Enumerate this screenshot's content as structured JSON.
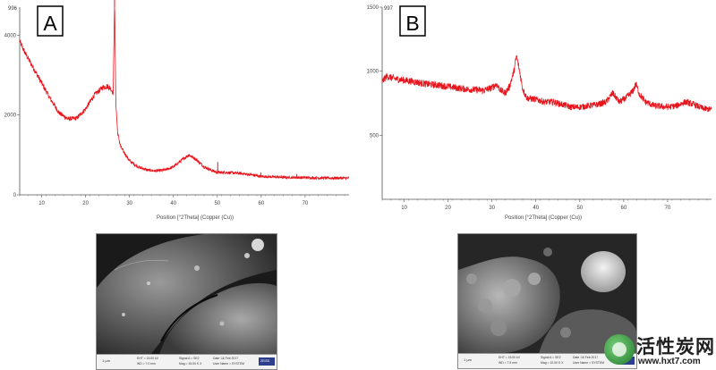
{
  "chart_data": [
    {
      "type": "line",
      "panel_label": "A",
      "corner_label": "996",
      "xlabel": "Position [°2Theta] (Copper (Cu))",
      "xlim": [
        5,
        80
      ],
      "ylim": [
        0,
        4700
      ],
      "xticks": [
        10,
        20,
        30,
        40,
        50,
        60,
        70
      ],
      "yticks": [
        0,
        2000,
        4000
      ],
      "grid": false,
      "line_color": "#e8141c",
      "noise_amplitude": 70,
      "series": [
        {
          "x": [
            5,
            6,
            8,
            10,
            12,
            14,
            16,
            18,
            20,
            22,
            24,
            25,
            25.8,
            26.3,
            26.6,
            26.9,
            27.3,
            28,
            30,
            32,
            34,
            36,
            38,
            40,
            42,
            43.5,
            45,
            47,
            49,
            50,
            52,
            55,
            58,
            60,
            65,
            70,
            75,
            80
          ],
          "y": [
            3850,
            3600,
            3200,
            2800,
            2400,
            2050,
            1900,
            1920,
            2150,
            2500,
            2700,
            2720,
            2650,
            2550,
            4900,
            2300,
            1550,
            1200,
            850,
            700,
            620,
            600,
            620,
            700,
            880,
            1000,
            900,
            700,
            600,
            560,
            560,
            540,
            500,
            460,
            440,
            430,
            420,
            420
          ]
        }
      ],
      "peaks": [
        {
          "x": 26.6,
          "y": 4900
        },
        {
          "x": 50.1,
          "y": 820
        },
        {
          "x": 59.9,
          "y": 560
        },
        {
          "x": 68.1,
          "y": 520
        }
      ]
    },
    {
      "type": "line",
      "panel_label": "B",
      "corner_label": "997",
      "xlabel": "Position [°2Theta] (Copper (Cu))",
      "xlim": [
        5,
        80
      ],
      "ylim": [
        0,
        1500
      ],
      "xticks": [
        10,
        20,
        30,
        40,
        50,
        60,
        70
      ],
      "yticks": [
        500,
        1000,
        1500
      ],
      "grid": false,
      "line_color": "#e8141c",
      "noise_amplitude": 28,
      "series": [
        {
          "x": [
            5,
            6,
            8,
            10,
            12,
            15,
            18,
            20,
            22,
            24,
            26,
            28,
            30,
            31,
            32,
            33,
            34,
            35,
            35.6,
            36.3,
            37,
            38,
            40,
            42,
            44,
            46,
            48,
            50,
            52,
            54,
            56,
            57.5,
            59,
            60.5,
            62,
            62.8,
            63.6,
            65,
            67,
            70,
            72,
            74,
            76,
            78,
            80
          ],
          "y": [
            920,
            960,
            940,
            930,
            920,
            900,
            890,
            880,
            870,
            860,
            855,
            850,
            870,
            900,
            850,
            830,
            880,
            1000,
            1120,
            1000,
            860,
            790,
            780,
            760,
            760,
            740,
            720,
            720,
            730,
            740,
            760,
            830,
            760,
            790,
            840,
            900,
            820,
            760,
            730,
            720,
            730,
            760,
            740,
            710,
            700
          ]
        }
      ],
      "peaks": []
    }
  ],
  "sem_a": {
    "scale_label": "1 µm",
    "col1": [
      "EHT = 15.00 kV",
      "WD = 7.0 mm"
    ],
    "col2": [
      "Signal A = SE2",
      "Mag = 15.00 K X"
    ],
    "col3": [
      "Date :16 Feb 2017",
      "User Name = SYSTEM"
    ],
    "logo": "ZEISS"
  },
  "sem_b": {
    "scale_label": "1 µm",
    "col1": [
      "EHT = 15.00 kV",
      "WD = 7.5 mm"
    ],
    "col2": [
      "Signal A = SE2",
      "Mag = 10.00 K X"
    ],
    "col3": [
      "Date :16 Feb 2017",
      "User Name = SYSTEM"
    ],
    "logo": "ZEISS"
  },
  "watermark": {
    "title": "活性炭网",
    "url": "www.hxt7.com"
  },
  "colors": {
    "axis": "#555555",
    "tick_text": "#444444",
    "sem_bg": "#000000",
    "watermark_green": "#2e8b3a"
  }
}
